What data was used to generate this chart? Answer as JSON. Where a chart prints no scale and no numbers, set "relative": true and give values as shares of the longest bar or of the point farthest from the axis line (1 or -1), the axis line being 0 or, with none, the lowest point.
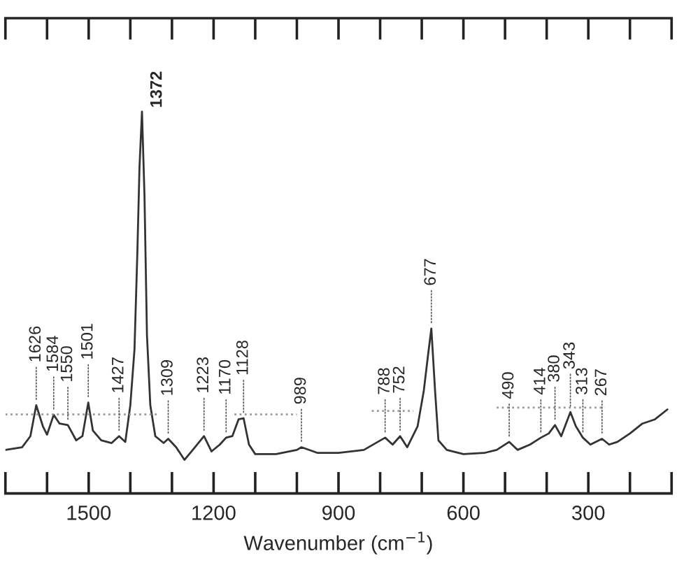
{
  "chart_data": {
    "type": "line",
    "relative": true,
    "xlabel": "Wavenumber (cm$^{−1}$)",
    "xlim": [
      1700,
      100
    ],
    "xticks": [
      {
        "value": 1700,
        "label": null
      },
      {
        "value": 1600,
        "label": null
      },
      1500,
      {
        "value": 1400,
        "label": null
      },
      {
        "value": 1300,
        "label": null
      },
      1200,
      {
        "value": 1100,
        "label": null
      },
      {
        "value": 1000,
        "label": null
      },
      900,
      {
        "value": 800,
        "label": null
      },
      {
        "value": 700,
        "label": null
      },
      600,
      {
        "value": 500,
        "label": null
      },
      {
        "value": 400,
        "label": null
      },
      300,
      {
        "value": 200,
        "label": null
      },
      {
        "value": 100,
        "label": null
      }
    ],
    "tick_labels": "x",
    "grid": false,
    "legend": false,
    "series": [
      {
        "color": "#333333",
        "line_style": "solid",
        "x": [
          1700,
          1660,
          1640,
          1626,
          1610,
          1600,
          1584,
          1570,
          1550,
          1530,
          1515,
          1501,
          1490,
          1470,
          1445,
          1427,
          1412,
          1400,
          1390,
          1383,
          1378,
          1372,
          1366,
          1360,
          1352,
          1340,
          1320,
          1309,
          1290,
          1270,
          1250,
          1223,
          1205,
          1185,
          1170,
          1155,
          1140,
          1128,
          1115,
          1100,
          1050,
          1000,
          989,
          950,
          900,
          839,
          788,
          770,
          752,
          735,
          710,
          695,
          685,
          677,
          668,
          660,
          640,
          600,
          550,
          520,
          490,
          470,
          440,
          414,
          395,
          380,
          365,
          343,
          330,
          313,
          295,
          267,
          250,
          230,
          200,
          170,
          140,
          110
        ],
        "values": [
          0.114,
          0.121,
          0.15,
          0.231,
          0.176,
          0.154,
          0.206,
          0.183,
          0.179,
          0.139,
          0.15,
          0.238,
          0.165,
          0.139,
          0.132,
          0.15,
          0.135,
          0.231,
          0.377,
          0.635,
          0.854,
          1.0,
          0.781,
          0.414,
          0.231,
          0.15,
          0.132,
          0.143,
          0.121,
          0.088,
          0.114,
          0.15,
          0.11,
          0.128,
          0.146,
          0.15,
          0.194,
          0.197,
          0.128,
          0.103,
          0.103,
          0.114,
          0.121,
          0.106,
          0.106,
          0.114,
          0.146,
          0.128,
          0.15,
          0.121,
          0.176,
          0.27,
          0.362,
          0.432,
          0.268,
          0.139,
          0.114,
          0.103,
          0.106,
          0.114,
          0.135,
          0.114,
          0.128,
          0.146,
          0.157,
          0.179,
          0.15,
          0.213,
          0.176,
          0.146,
          0.128,
          0.143,
          0.128,
          0.135,
          0.157,
          0.183,
          0.194,
          0.22
        ]
      },
      {
        "color": "#999999",
        "line_style": "dotted",
        "x": [
          1700,
          1335,
          1334,
          1150,
          1000,
          999,
          820,
          720,
          719,
          520,
          260
        ],
        "values": [
          0.207,
          0.207,
          null,
          0.207,
          0.207,
          null,
          0.216,
          0.216,
          null,
          0.225,
          0.225
        ]
      }
    ],
    "annotations": [
      {
        "text": "1626",
        "x": 1626,
        "y": 0.231
      },
      {
        "text": "1584",
        "x": 1584,
        "y": 0.206
      },
      {
        "text": "1550",
        "x": 1550,
        "y": 0.179
      },
      {
        "text": "1501",
        "x": 1501,
        "y": 0.238
      },
      {
        "text": "1427",
        "x": 1427,
        "y": 0.15
      },
      {
        "text": "1372",
        "x": 1372,
        "y": 1.0
      },
      {
        "text": "1309",
        "x": 1309,
        "y": 0.143
      },
      {
        "text": "1223",
        "x": 1223,
        "y": 0.15
      },
      {
        "text": "1170",
        "x": 1170,
        "y": 0.146
      },
      {
        "text": "1128",
        "x": 1128,
        "y": 0.197
      },
      {
        "text": "989",
        "x": 989,
        "y": 0.121
      },
      {
        "text": "788",
        "x": 788,
        "y": 0.146
      },
      {
        "text": "752",
        "x": 752,
        "y": 0.15
      },
      {
        "text": "677",
        "x": 677,
        "y": 0.432
      },
      {
        "text": "490",
        "x": 490,
        "y": 0.135
      },
      {
        "text": "414",
        "x": 414,
        "y": 0.146
      },
      {
        "text": "380",
        "x": 380,
        "y": 0.179
      },
      {
        "text": "343",
        "x": 343,
        "y": 0.213
      },
      {
        "text": "313",
        "x": 313,
        "y": 0.146
      },
      {
        "text": "267",
        "x": 267,
        "y": 0.143
      }
    ]
  }
}
